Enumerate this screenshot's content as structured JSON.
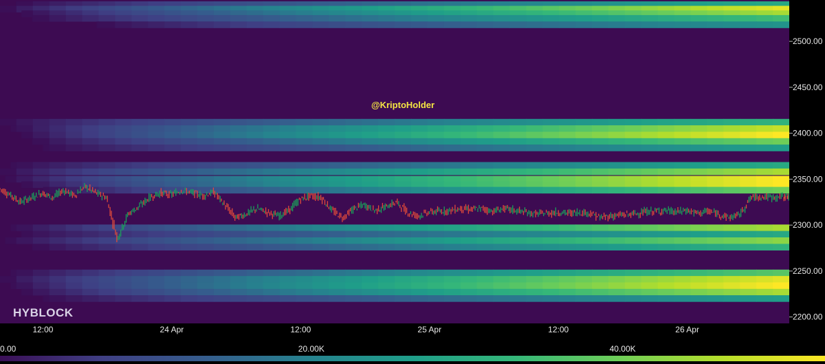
{
  "watermark": "@KriptoHolder",
  "brand": "HYBLOCK",
  "chart_data": {
    "type": "heatmap",
    "title": "",
    "xlabel": "",
    "ylabel": "",
    "x_ticks": [
      "12:00",
      "24 Apr",
      "12:00",
      "25 Apr",
      "12:00",
      "26 Apr"
    ],
    "x_tick_hours": [
      12,
      24,
      36,
      48,
      60,
      72
    ],
    "x_range_hours": [
      8,
      81.5
    ],
    "y_ticks": [
      "2200.00",
      "2250.00",
      "2300.00",
      "2350.00",
      "2400.00",
      "2450.00",
      "2500.00"
    ],
    "y_tick_values": [
      2200,
      2250,
      2300,
      2350,
      2400,
      2450,
      2500
    ],
    "ylim": [
      2193,
      2545
    ],
    "colorbar": {
      "labels": [
        "0.00",
        "20.00K",
        "40.00K"
      ],
      "label_values": [
        0,
        20000,
        40000
      ],
      "max": 53000,
      "colors": [
        "#3b0f57",
        "#3f3f84",
        "#355d8d",
        "#26828e",
        "#1f9e89",
        "#35b779",
        "#6ece58",
        "#b5de2b",
        "#fde725"
      ]
    },
    "background_color": "#3d0b52",
    "liquidation_bands": [
      {
        "price": 2540,
        "start_hour": 9.5,
        "peak": 0.55
      },
      {
        "price": 2535,
        "start_hour": 8,
        "peak": 0.95
      },
      {
        "price": 2530,
        "start_hour": 10,
        "peak": 0.85
      },
      {
        "price": 2525,
        "start_hour": 11,
        "peak": 0.65
      },
      {
        "price": 2518,
        "start_hour": 17,
        "peak": 0.45
      },
      {
        "price": 2412,
        "start_hour": 8,
        "peak": 0.6
      },
      {
        "price": 2405,
        "start_hour": 9,
        "peak": 0.9
      },
      {
        "price": 2398,
        "start_hour": 10,
        "peak": 1.0
      },
      {
        "price": 2391,
        "start_hour": 11,
        "peak": 0.75
      },
      {
        "price": 2384,
        "start_hour": 12,
        "peak": 0.5
      },
      {
        "price": 2365,
        "start_hour": 9,
        "peak": 0.55
      },
      {
        "price": 2358,
        "start_hour": 8,
        "peak": 0.85
      },
      {
        "price": 2350,
        "start_hour": 8.5,
        "peak": 1.0
      },
      {
        "price": 2344,
        "start_hour": 10,
        "peak": 1.0
      },
      {
        "price": 2338,
        "start_hour": 12,
        "peak": 0.75
      },
      {
        "price": 2297,
        "start_hour": 9,
        "peak": 0.85
      },
      {
        "price": 2290,
        "start_hour": 10,
        "peak": 0.55
      },
      {
        "price": 2283,
        "start_hour": 8.5,
        "peak": 0.8
      },
      {
        "price": 2276,
        "start_hour": 11,
        "peak": 0.6
      },
      {
        "price": 2248,
        "start_hour": 9,
        "peak": 0.7
      },
      {
        "price": 2241,
        "start_hour": 8,
        "peak": 0.95
      },
      {
        "price": 2234,
        "start_hour": 9,
        "peak": 1.0
      },
      {
        "price": 2227,
        "start_hour": 10,
        "peak": 0.85
      },
      {
        "price": 2220,
        "start_hour": 12,
        "peak": 0.5
      }
    ],
    "price_series": {
      "name": "",
      "points": [
        [
          8.0,
          2340
        ],
        [
          9.0,
          2333
        ],
        [
          10.0,
          2325
        ],
        [
          11.0,
          2330
        ],
        [
          12.0,
          2335
        ],
        [
          13.0,
          2330
        ],
        [
          14.0,
          2338
        ],
        [
          15.0,
          2332
        ],
        [
          16.0,
          2342
        ],
        [
          17.0,
          2335
        ],
        [
          18.0,
          2330
        ],
        [
          19.0,
          2285
        ],
        [
          20.0,
          2312
        ],
        [
          21.0,
          2320
        ],
        [
          22.0,
          2330
        ],
        [
          23.0,
          2335
        ],
        [
          24.0,
          2333
        ],
        [
          25.0,
          2338
        ],
        [
          26.0,
          2335
        ],
        [
          27.0,
          2332
        ],
        [
          28.0,
          2336
        ],
        [
          29.0,
          2322
        ],
        [
          30.0,
          2308
        ],
        [
          31.0,
          2312
        ],
        [
          32.0,
          2318
        ],
        [
          33.0,
          2314
        ],
        [
          34.0,
          2310
        ],
        [
          35.0,
          2316
        ],
        [
          36.0,
          2328
        ],
        [
          37.0,
          2332
        ],
        [
          38.0,
          2330
        ],
        [
          39.0,
          2316
        ],
        [
          40.0,
          2308
        ],
        [
          41.0,
          2318
        ],
        [
          42.0,
          2322
        ],
        [
          43.0,
          2316
        ],
        [
          44.0,
          2320
        ],
        [
          45.0,
          2325
        ],
        [
          46.0,
          2314
        ],
        [
          47.0,
          2310
        ],
        [
          48.0,
          2314
        ],
        [
          49.0,
          2315
        ],
        [
          50.0,
          2316
        ],
        [
          51.0,
          2318
        ],
        [
          52.0,
          2317
        ],
        [
          53.0,
          2318
        ],
        [
          54.0,
          2315
        ],
        [
          55.0,
          2318
        ],
        [
          56.0,
          2316
        ],
        [
          57.0,
          2314
        ],
        [
          58.0,
          2312
        ],
        [
          59.0,
          2313
        ],
        [
          60.0,
          2314
        ],
        [
          61.0,
          2313
        ],
        [
          62.0,
          2314
        ],
        [
          63.0,
          2313
        ],
        [
          64.0,
          2308
        ],
        [
          65.0,
          2310
        ],
        [
          66.0,
          2311
        ],
        [
          67.0,
          2312
        ],
        [
          68.0,
          2314
        ],
        [
          69.0,
          2315
        ],
        [
          70.0,
          2316
        ],
        [
          71.0,
          2314
        ],
        [
          72.0,
          2316
        ],
        [
          73.0,
          2313
        ],
        [
          74.0,
          2315
        ],
        [
          75.0,
          2312
        ],
        [
          76.0,
          2308
        ],
        [
          77.0,
          2312
        ],
        [
          78.0,
          2330
        ],
        [
          79.0,
          2331
        ],
        [
          80.0,
          2330
        ],
        [
          81.0,
          2331
        ],
        [
          81.5,
          2332
        ]
      ],
      "up_color": "#1aa05a",
      "down_color": "#e04a3a"
    }
  }
}
